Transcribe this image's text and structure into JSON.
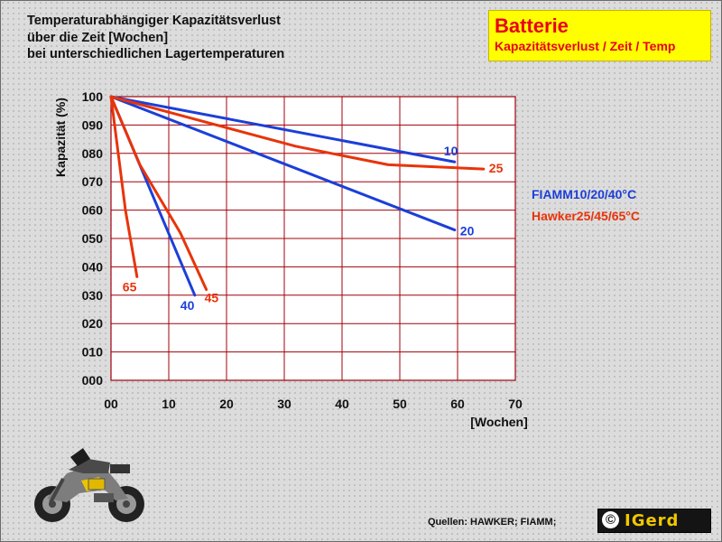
{
  "title": {
    "line1": "Temperaturabhängiger Kapazitätsverlust",
    "line2": "über die Zeit [Wochen]",
    "line3": "bei unterschiedlichen Lagertemperaturen"
  },
  "badge": {
    "heading": "Batterie",
    "subtitle": "Kapazitätsverlust / Zeit / Temp"
  },
  "legend": [
    {
      "text": "FIAMM10/20/40°C",
      "color": "#1c3fd8"
    },
    {
      "text": "Hawker25/45/65°C",
      "color": "#e8340a"
    }
  ],
  "source": "Quellen: HAWKER; FIAMM;",
  "logo": {
    "symbol": "©",
    "name": "IGerd"
  },
  "motorcycle_icon": "motorcycle-icon",
  "chart_data": {
    "type": "line",
    "xlabel": "[Wochen]",
    "ylabel": "Kapazität (%)",
    "xlim": [
      0,
      70
    ],
    "ylim": [
      0,
      100
    ],
    "x_ticks": [
      "00",
      "10",
      "20",
      "30",
      "40",
      "50",
      "60",
      "70"
    ],
    "y_ticks": [
      "000",
      "010",
      "020",
      "030",
      "040",
      "050",
      "060",
      "070",
      "080",
      "090",
      "100"
    ],
    "grid": true,
    "plot_background": "#ffffff",
    "grid_color": "#a0000a",
    "series": [
      {
        "name": "10",
        "color": "#1c3fd8",
        "x": [
          0,
          59.5
        ],
        "y": [
          100,
          77
        ]
      },
      {
        "name": "20",
        "color": "#1c3fd8",
        "x": [
          0,
          59.5
        ],
        "y": [
          100,
          53
        ]
      },
      {
        "name": "40",
        "color": "#1c3fd8",
        "x": [
          0,
          14.5
        ],
        "y": [
          100,
          30
        ]
      },
      {
        "name": "25",
        "color": "#e8340a",
        "x": [
          0,
          32,
          48,
          64.5
        ],
        "y": [
          100,
          82.5,
          76,
          74.5
        ]
      },
      {
        "name": "45",
        "color": "#e8340a",
        "x": [
          0,
          5,
          12,
          16.5
        ],
        "y": [
          100,
          76,
          52,
          32
        ]
      },
      {
        "name": "65",
        "color": "#e8340a",
        "x": [
          0,
          2.5,
          4.5
        ],
        "y": [
          100,
          60,
          36.5
        ]
      }
    ]
  }
}
